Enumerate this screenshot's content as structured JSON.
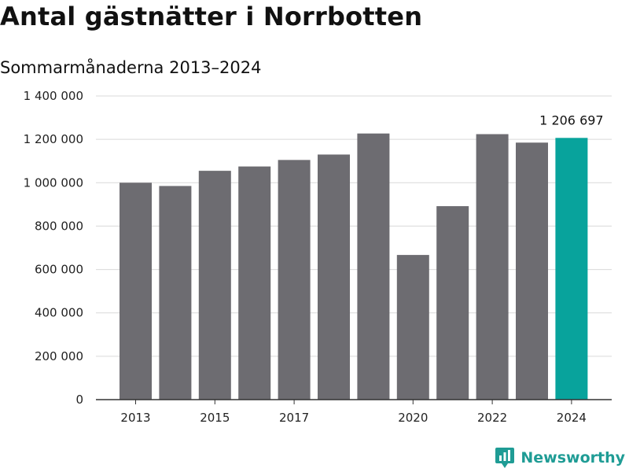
{
  "title": "Antal gästnätter i Norrbotten",
  "subtitle": "Sommarmånaderna 2013–2024",
  "brand": {
    "name": "Newsworthy",
    "icon": "newsworthy-logo-icon"
  },
  "colors": {
    "bar": "#6d6c71",
    "highlight": "#08a39c",
    "grid": "#d9d9d9",
    "axis": "#333333",
    "brand": "#1f9c95"
  },
  "chart_data": {
    "type": "bar",
    "title": "Antal gästnätter i Norrbotten",
    "subtitle": "Sommarmånaderna 2013–2024",
    "xlabel": "",
    "ylabel": "",
    "categories": [
      "2013",
      "2014",
      "2015",
      "2016",
      "2017",
      "2018",
      "2019",
      "2020",
      "2021",
      "2022",
      "2023",
      "2024"
    ],
    "x_tick_labels": [
      "2013",
      "",
      "2015",
      "",
      "2017",
      "",
      "",
      "2020",
      "",
      "2022",
      "",
      "2024"
    ],
    "values": [
      1000000,
      985000,
      1055000,
      1075000,
      1105000,
      1130000,
      1227000,
      667000,
      892000,
      1224000,
      1185000,
      1206697
    ],
    "highlight_index": 11,
    "data_labels": [
      {
        "index": 11,
        "text": "1 206 697"
      }
    ],
    "ylim": [
      0,
      1400000
    ],
    "y_ticks": [
      0,
      200000,
      400000,
      600000,
      800000,
      1000000,
      1200000,
      1400000
    ],
    "y_tick_labels": [
      "0",
      "200 000",
      "400 000",
      "600 000",
      "800 000",
      "1 000 000",
      "1 200 000",
      "1 400 000"
    ],
    "grid": true,
    "legend": "none"
  }
}
